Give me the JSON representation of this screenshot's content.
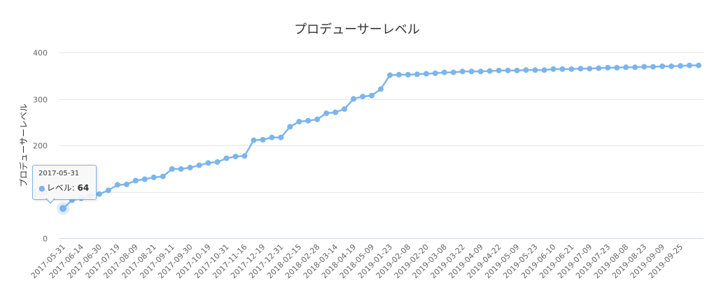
{
  "chart_data": {
    "type": "line",
    "title": "プロデューサーレベル",
    "ylabel": "プロデューサーレベル",
    "xlabel": "",
    "ylim": [
      0,
      400
    ],
    "yticks": [
      "0",
      "100",
      "200",
      "300",
      "400"
    ],
    "series_color": "#7cb5ec",
    "grid": true,
    "x_labels": [
      "2017-05-31",
      "2017-06-14",
      "2017-06-30",
      "2017-07-19",
      "2017-08-09",
      "2017-08-21",
      "2017-09-11",
      "2017-09-30",
      "2017-10-19",
      "2017-10-31",
      "2017-11-16",
      "2017-12-19",
      "2017-12-31",
      "2018-02-15",
      "2018-02-28",
      "2018-03-14",
      "2018-04-19",
      "2018-05-09",
      "2019-01-23",
      "2019-02-08",
      "2019-02-20",
      "2019-03-08",
      "2019-03-22",
      "2019-04-09",
      "2019-04-22",
      "2019-05-09",
      "2019-05-23",
      "2019-06-10",
      "2019-06-21",
      "2019-07-09",
      "2019-07-23",
      "2019-08-08",
      "2019-08-23",
      "2019-09-09",
      "2019-09-25"
    ],
    "series": [
      {
        "name": "レベル",
        "values": [
          64,
          82,
          86,
          91,
          95,
          103,
          115,
          116,
          124,
          127,
          131,
          133,
          149,
          149,
          152,
          157,
          162,
          164,
          172,
          176,
          177,
          211,
          212,
          217,
          217,
          240,
          251,
          253,
          256,
          269,
          271,
          278,
          300,
          305,
          307,
          321,
          351,
          352,
          352,
          353,
          354,
          355,
          357,
          357,
          359,
          359,
          359,
          360,
          361,
          361,
          361,
          362,
          362,
          362,
          364,
          364,
          364,
          365,
          365,
          366,
          367,
          367,
          368,
          368,
          369,
          369,
          370,
          370,
          371,
          372,
          372
        ]
      }
    ]
  },
  "tooltip": {
    "date": "2017-05-31",
    "series_label": "レベル: ",
    "value": "64",
    "marker": "●"
  }
}
